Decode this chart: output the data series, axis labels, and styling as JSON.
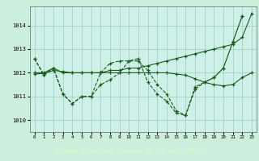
{
  "background_color": "#cceedd",
  "plot_bg": "#cef0e8",
  "grid_color": "#99ccbb",
  "line_color": "#1a5c1a",
  "footer_bg": "#2d6e2d",
  "footer_text_color": "#ccffcc",
  "title": "Graphe pression niveau de la mer (hPa)",
  "xlim": [
    -0.5,
    23.5
  ],
  "ylim": [
    1009.5,
    1014.8
  ],
  "yticks": [
    1010,
    1011,
    1012,
    1013,
    1014
  ],
  "xticks": [
    0,
    1,
    2,
    3,
    4,
    5,
    6,
    7,
    8,
    9,
    10,
    11,
    12,
    13,
    14,
    15,
    16,
    17,
    18,
    19,
    20,
    21,
    22,
    23
  ],
  "s1": [
    1012.6,
    1011.9,
    1012.2,
    1011.1,
    1010.7,
    1011.0,
    1011.0,
    1011.5,
    1011.7,
    1012.0,
    1012.5,
    1012.6,
    1011.6,
    1011.1,
    1010.8,
    1010.3,
    1010.2,
    1011.3,
    1011.6,
    1011.8,
    1012.2,
    1013.3,
    1014.4,
    null
  ],
  "s2": [
    1012.0,
    1012.0,
    1012.2,
    1012.0,
    1012.0,
    1012.0,
    1012.0,
    1012.0,
    1012.1,
    1012.1,
    1012.2,
    1012.2,
    1012.3,
    1012.4,
    1012.5,
    1012.6,
    1012.7,
    1012.8,
    1012.9,
    1013.0,
    1013.1,
    1013.2,
    1013.5,
    1014.5
  ],
  "s3": [
    1011.95,
    1011.97,
    1012.1,
    1012.05,
    1012.0,
    1012.0,
    1012.0,
    1012.0,
    1012.0,
    1012.0,
    1012.0,
    1012.0,
    1012.0,
    1012.0,
    1012.0,
    1011.95,
    1011.9,
    1011.75,
    1011.6,
    1011.5,
    1011.45,
    1011.5,
    1011.8,
    1012.0
  ],
  "s4": [
    1012.6,
    1011.9,
    1012.2,
    1011.1,
    1010.7,
    1011.0,
    1011.0,
    1012.0,
    1012.4,
    1012.5,
    1012.5,
    1012.5,
    1012.1,
    1011.5,
    1011.1,
    1010.4,
    1010.2,
    1011.4,
    1011.6,
    1011.8,
    1012.2,
    1013.3,
    1014.4,
    null
  ]
}
